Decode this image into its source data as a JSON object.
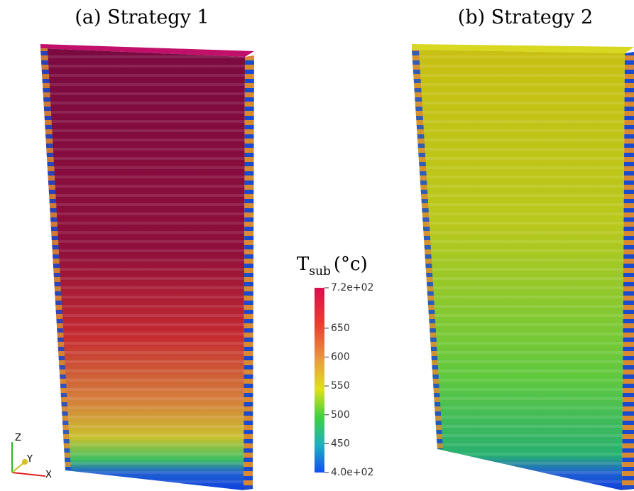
{
  "panels": [
    {
      "label": "(a) Strategy 1"
    },
    {
      "label": "(b) Strategy 2"
    }
  ],
  "colorbar": {
    "title": "T",
    "title_sub": "sub",
    "title_unit": "(°c)",
    "range": [
      400,
      720
    ],
    "ticks": [
      {
        "value": 720,
        "label": "7.2e+02"
      },
      650,
      600,
      550,
      500,
      450,
      {
        "value": 400,
        "label": "4.0e+02"
      }
    ]
  },
  "axes_triad": {
    "z": "Z",
    "y": "Y",
    "x": "X"
  }
}
